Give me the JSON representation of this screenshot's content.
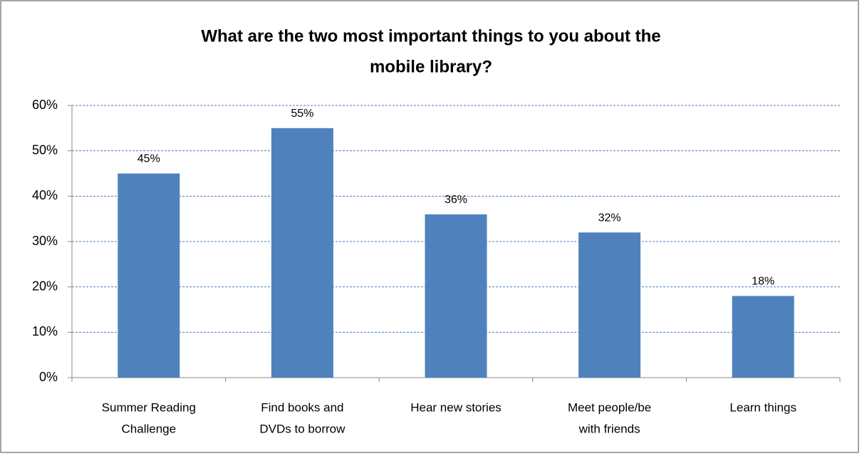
{
  "chart_data": {
    "type": "bar",
    "title": [
      "What are the two most important things to you about the",
      "mobile library?"
    ],
    "categories": [
      [
        "Summer Reading",
        "Challenge"
      ],
      [
        "Find books and",
        "DVDs to borrow"
      ],
      [
        "Hear new stories"
      ],
      [
        "Meet people/be",
        "with friends"
      ],
      [
        "Learn things"
      ]
    ],
    "values": [
      45,
      55,
      36,
      32,
      18
    ],
    "value_labels": [
      "45%",
      "55%",
      "36%",
      "32%",
      "18%"
    ],
    "color": "#4f81bd",
    "ylim": [
      0,
      60
    ],
    "yticks": [
      {
        "value": 0,
        "label": "0%"
      },
      {
        "value": 10,
        "label": "10%"
      },
      {
        "value": 20,
        "label": "20%"
      },
      {
        "value": 30,
        "label": "30%"
      },
      {
        "value": 40,
        "label": "40%"
      },
      {
        "value": 50,
        "label": "50%"
      },
      {
        "value": 60,
        "label": "60%"
      }
    ],
    "grid": true
  }
}
